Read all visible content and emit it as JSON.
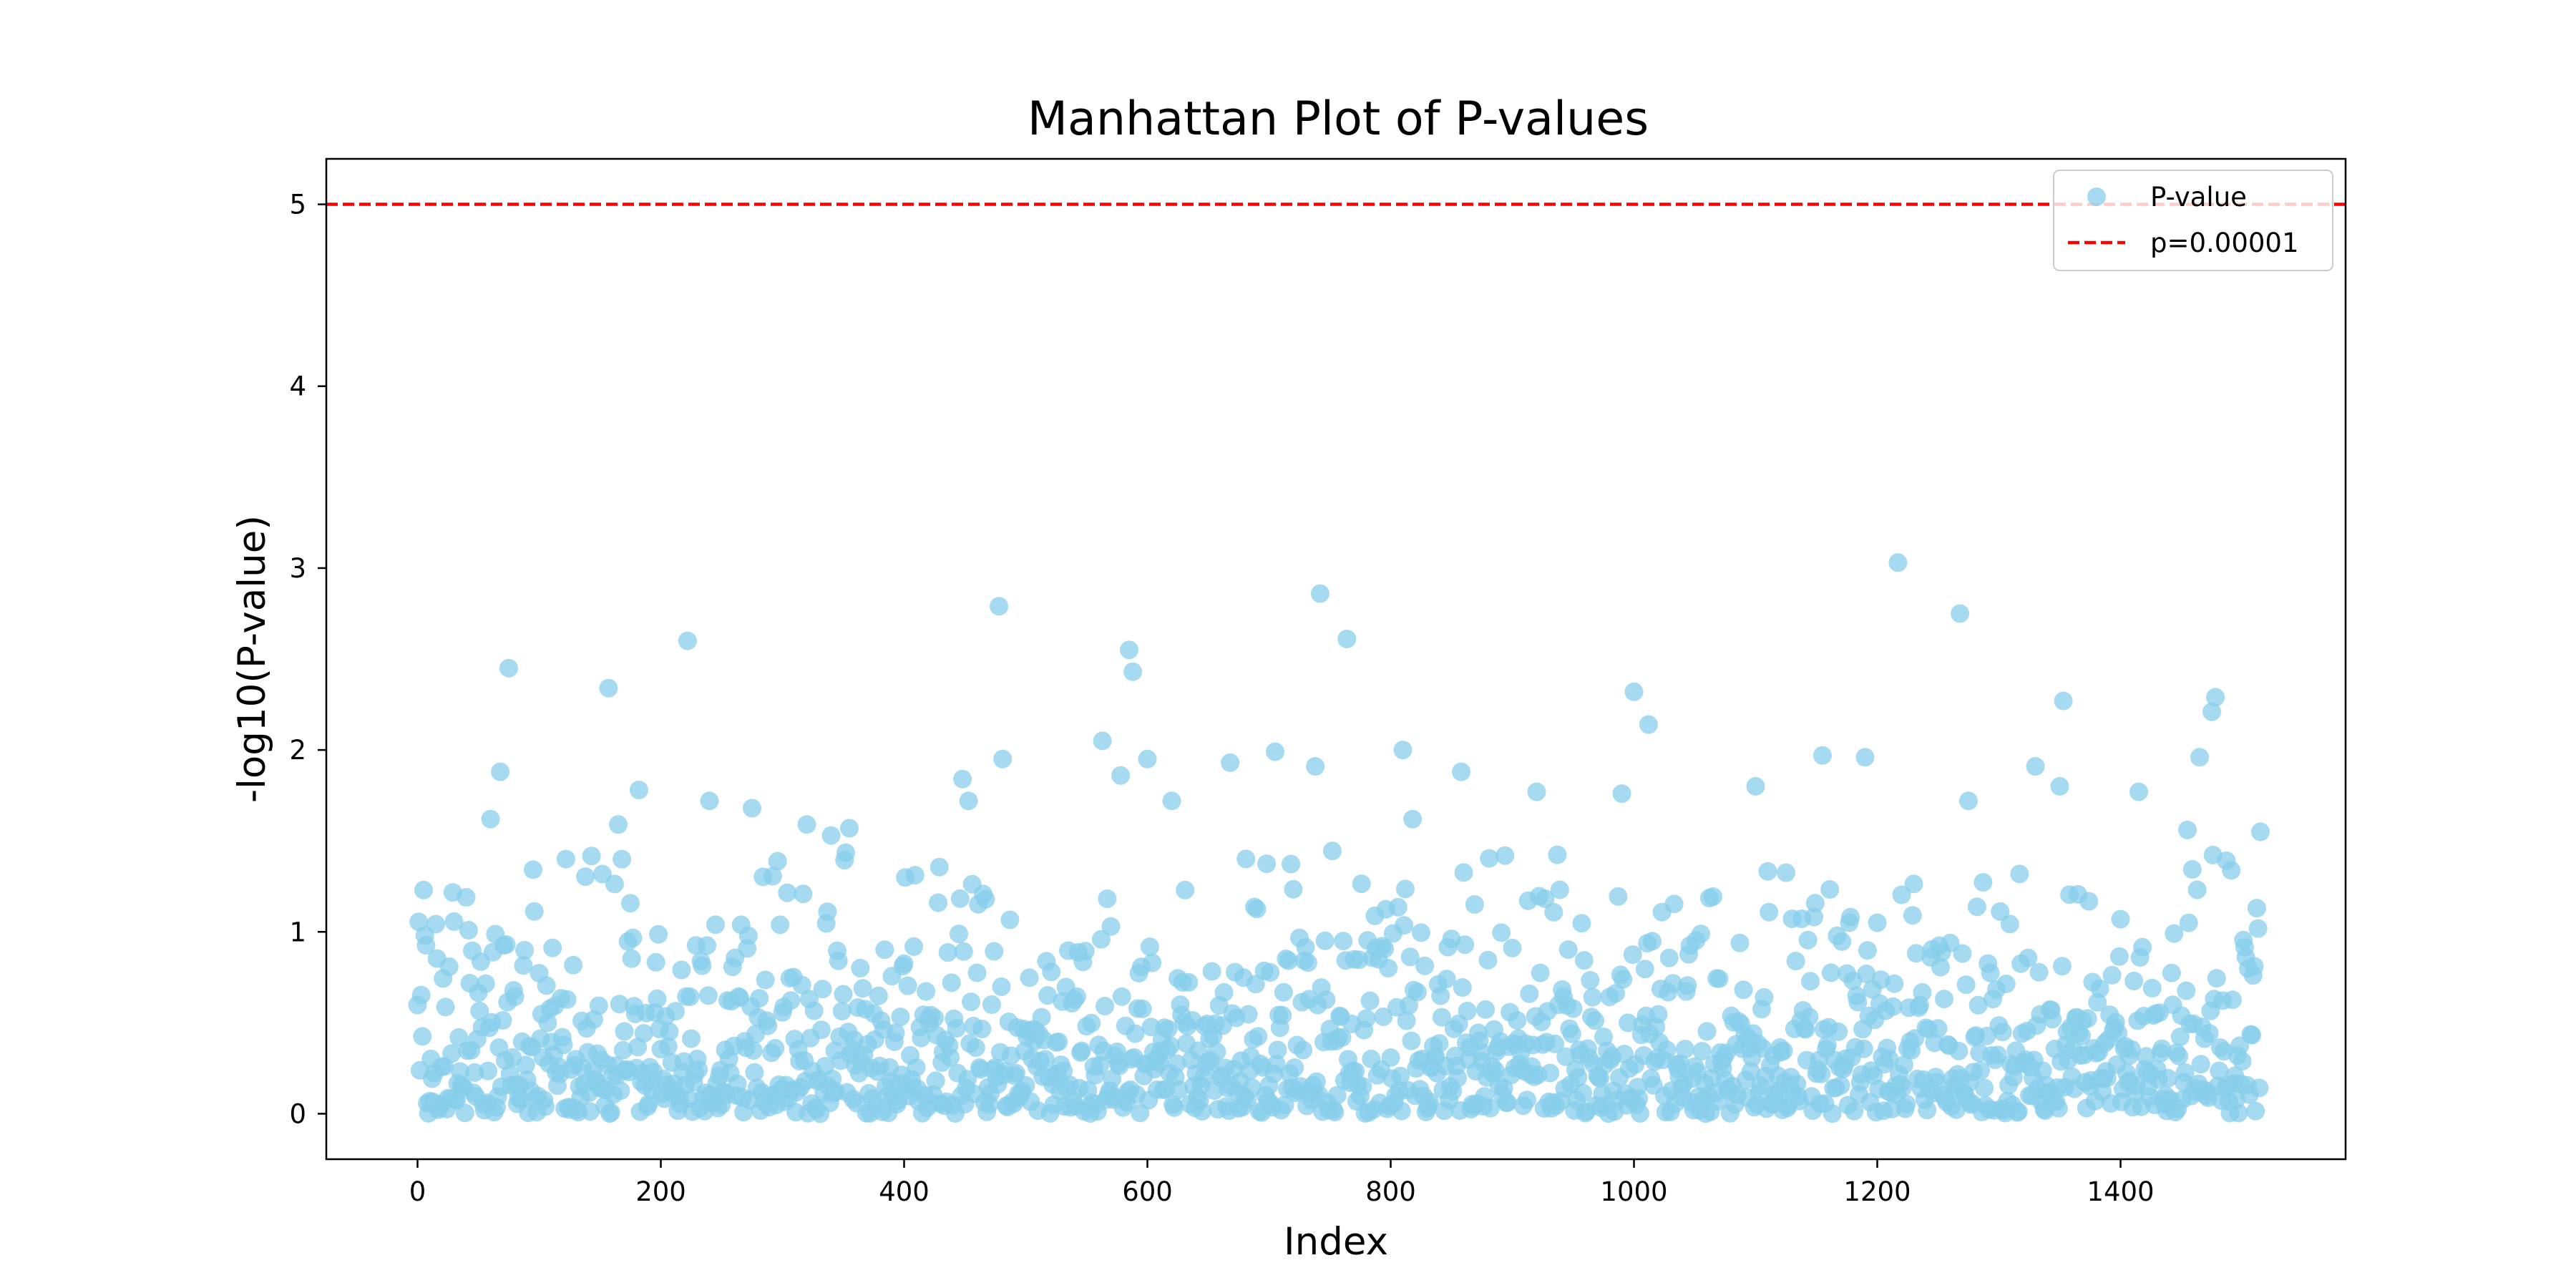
{
  "chart_data": {
    "type": "scatter",
    "title": "Manhattan Plot of P-values",
    "xlabel": "Index",
    "ylabel": "-log10(P-value)",
    "xlim": [
      -75,
      1585
    ],
    "ylim": [
      -0.25,
      5.25
    ],
    "x_ticks": [
      0,
      200,
      400,
      600,
      800,
      1000,
      1200,
      1400
    ],
    "y_ticks": [
      0,
      1,
      2,
      3,
      4,
      5
    ],
    "grid": false,
    "legend": {
      "placement": "top-right",
      "entries": [
        "P-value",
        "p=0.00001"
      ]
    },
    "series": [
      {
        "name": "P-value",
        "marker": "circle",
        "color": "#87ceeb",
        "n_points": 1516,
        "x_range": [
          0,
          1515
        ],
        "notable_points": [
          {
            "x": 5,
            "y": 1.23
          },
          {
            "x": 40,
            "y": 1.19
          },
          {
            "x": 60,
            "y": 1.62
          },
          {
            "x": 68,
            "y": 1.88
          },
          {
            "x": 75,
            "y": 2.45
          },
          {
            "x": 122,
            "y": 1.4
          },
          {
            "x": 157,
            "y": 2.34
          },
          {
            "x": 165,
            "y": 1.59
          },
          {
            "x": 182,
            "y": 1.78
          },
          {
            "x": 222,
            "y": 2.6
          },
          {
            "x": 240,
            "y": 1.72
          },
          {
            "x": 275,
            "y": 1.68
          },
          {
            "x": 320,
            "y": 1.59
          },
          {
            "x": 340,
            "y": 1.53
          },
          {
            "x": 355,
            "y": 1.57
          },
          {
            "x": 448,
            "y": 1.84
          },
          {
            "x": 453,
            "y": 1.72
          },
          {
            "x": 478,
            "y": 2.79
          },
          {
            "x": 481,
            "y": 1.95
          },
          {
            "x": 563,
            "y": 2.05
          },
          {
            "x": 578,
            "y": 1.86
          },
          {
            "x": 585,
            "y": 2.55
          },
          {
            "x": 588,
            "y": 2.43
          },
          {
            "x": 600,
            "y": 1.95
          },
          {
            "x": 620,
            "y": 1.72
          },
          {
            "x": 668,
            "y": 1.93
          },
          {
            "x": 705,
            "y": 1.99
          },
          {
            "x": 738,
            "y": 1.91
          },
          {
            "x": 742,
            "y": 2.86
          },
          {
            "x": 764,
            "y": 2.61
          },
          {
            "x": 810,
            "y": 2.0
          },
          {
            "x": 818,
            "y": 1.62
          },
          {
            "x": 858,
            "y": 1.88
          },
          {
            "x": 920,
            "y": 1.77
          },
          {
            "x": 990,
            "y": 1.76
          },
          {
            "x": 1000,
            "y": 2.32
          },
          {
            "x": 1012,
            "y": 2.14
          },
          {
            "x": 1100,
            "y": 1.8
          },
          {
            "x": 1155,
            "y": 1.97
          },
          {
            "x": 1190,
            "y": 1.96
          },
          {
            "x": 1217,
            "y": 3.03
          },
          {
            "x": 1268,
            "y": 2.75
          },
          {
            "x": 1275,
            "y": 1.72
          },
          {
            "x": 1330,
            "y": 1.91
          },
          {
            "x": 1353,
            "y": 2.27
          },
          {
            "x": 1350,
            "y": 1.8
          },
          {
            "x": 1415,
            "y": 1.77
          },
          {
            "x": 1455,
            "y": 1.56
          },
          {
            "x": 1465,
            "y": 1.96
          },
          {
            "x": 1475,
            "y": 2.21
          },
          {
            "x": 1478,
            "y": 2.29
          },
          {
            "x": 1515,
            "y": 1.55
          }
        ]
      },
      {
        "name": "p=0.00001",
        "type": "hline",
        "y": 5,
        "color": "#ff0000",
        "style": "dashed"
      }
    ]
  }
}
